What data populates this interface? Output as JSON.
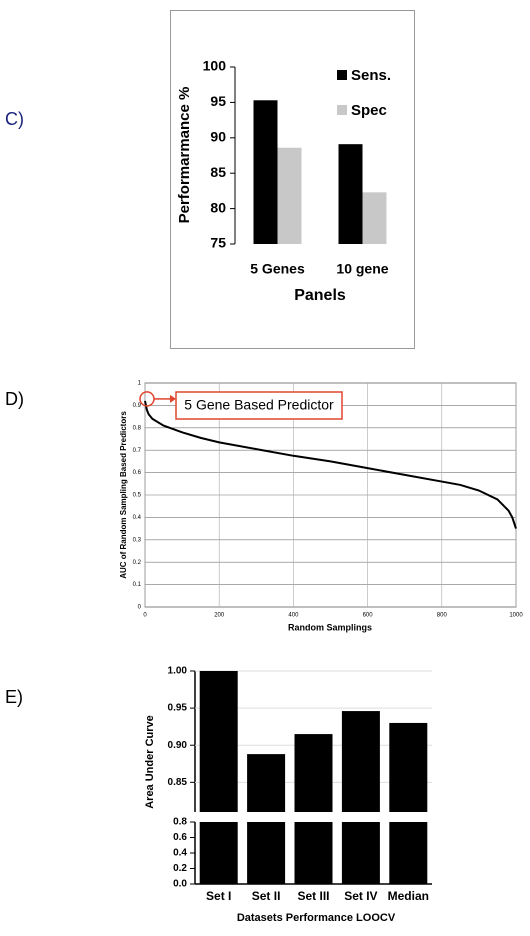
{
  "chart_data": [
    {
      "type": "bar",
      "panel_label": "C)",
      "categories": [
        "5 Genes",
        "10 gene"
      ],
      "series": [
        {
          "name": "Sens.",
          "color": "#000000",
          "values": [
            95.3,
            89.1
          ]
        },
        {
          "name": "Spec",
          "color": "#c8c8c8",
          "values": [
            88.6,
            82.3
          ]
        }
      ],
      "ylim": [
        75,
        100
      ],
      "yticks": [
        75,
        80,
        85,
        90,
        95,
        100
      ],
      "ylabel": "Performarmance %",
      "xlabel": "Panels",
      "legend": "top-right"
    },
    {
      "type": "line",
      "panel_label": "D)",
      "annotation": "5 Gene Based Predictor",
      "x": [
        0,
        5,
        10,
        20,
        50,
        100,
        150,
        200,
        300,
        400,
        500,
        600,
        700,
        800,
        850,
        900,
        950,
        980,
        990,
        1000
      ],
      "values": [
        0.92,
        0.88,
        0.86,
        0.84,
        0.81,
        0.78,
        0.755,
        0.735,
        0.705,
        0.675,
        0.65,
        0.62,
        0.59,
        0.56,
        0.545,
        0.52,
        0.48,
        0.43,
        0.4,
        0.35
      ],
      "color": "#000000",
      "xlim": [
        0,
        1000
      ],
      "xticks": [
        0,
        200,
        400,
        600,
        800,
        1000
      ],
      "ylim": [
        0,
        1
      ],
      "yticks": [
        0,
        0.1,
        0.2,
        0.3,
        0.4,
        0.5,
        0.6,
        0.7,
        0.8,
        0.9,
        1
      ],
      "xlabel": "Random Samplings",
      "ylabel": "AUC of Random Sampling Based Predictors",
      "grid": true
    },
    {
      "type": "bar",
      "panel_label": "E)",
      "categories": [
        "Set I",
        "Set II",
        "Set III",
        "Set IV",
        "Median"
      ],
      "values": [
        1.0,
        0.888,
        0.915,
        0.946,
        0.93
      ],
      "color": "#000000",
      "ylim": [
        0.81,
        1.0
      ],
      "yticks": [
        0.85,
        {
          "value": 0.9,
          "label": "0.90"
        },
        0.95,
        {
          "value": 1,
          "label": "1.00"
        }
      ],
      "ylim_lower": [
        0,
        0.8
      ],
      "yticks_lower": [
        {
          "value": 0,
          "label": "0.0"
        },
        0.2,
        0.4,
        0.6,
        0.8
      ],
      "ylabel": "Area Under Curve",
      "xlabel": "Datasets Performance LOOCV",
      "grid": true
    }
  ]
}
